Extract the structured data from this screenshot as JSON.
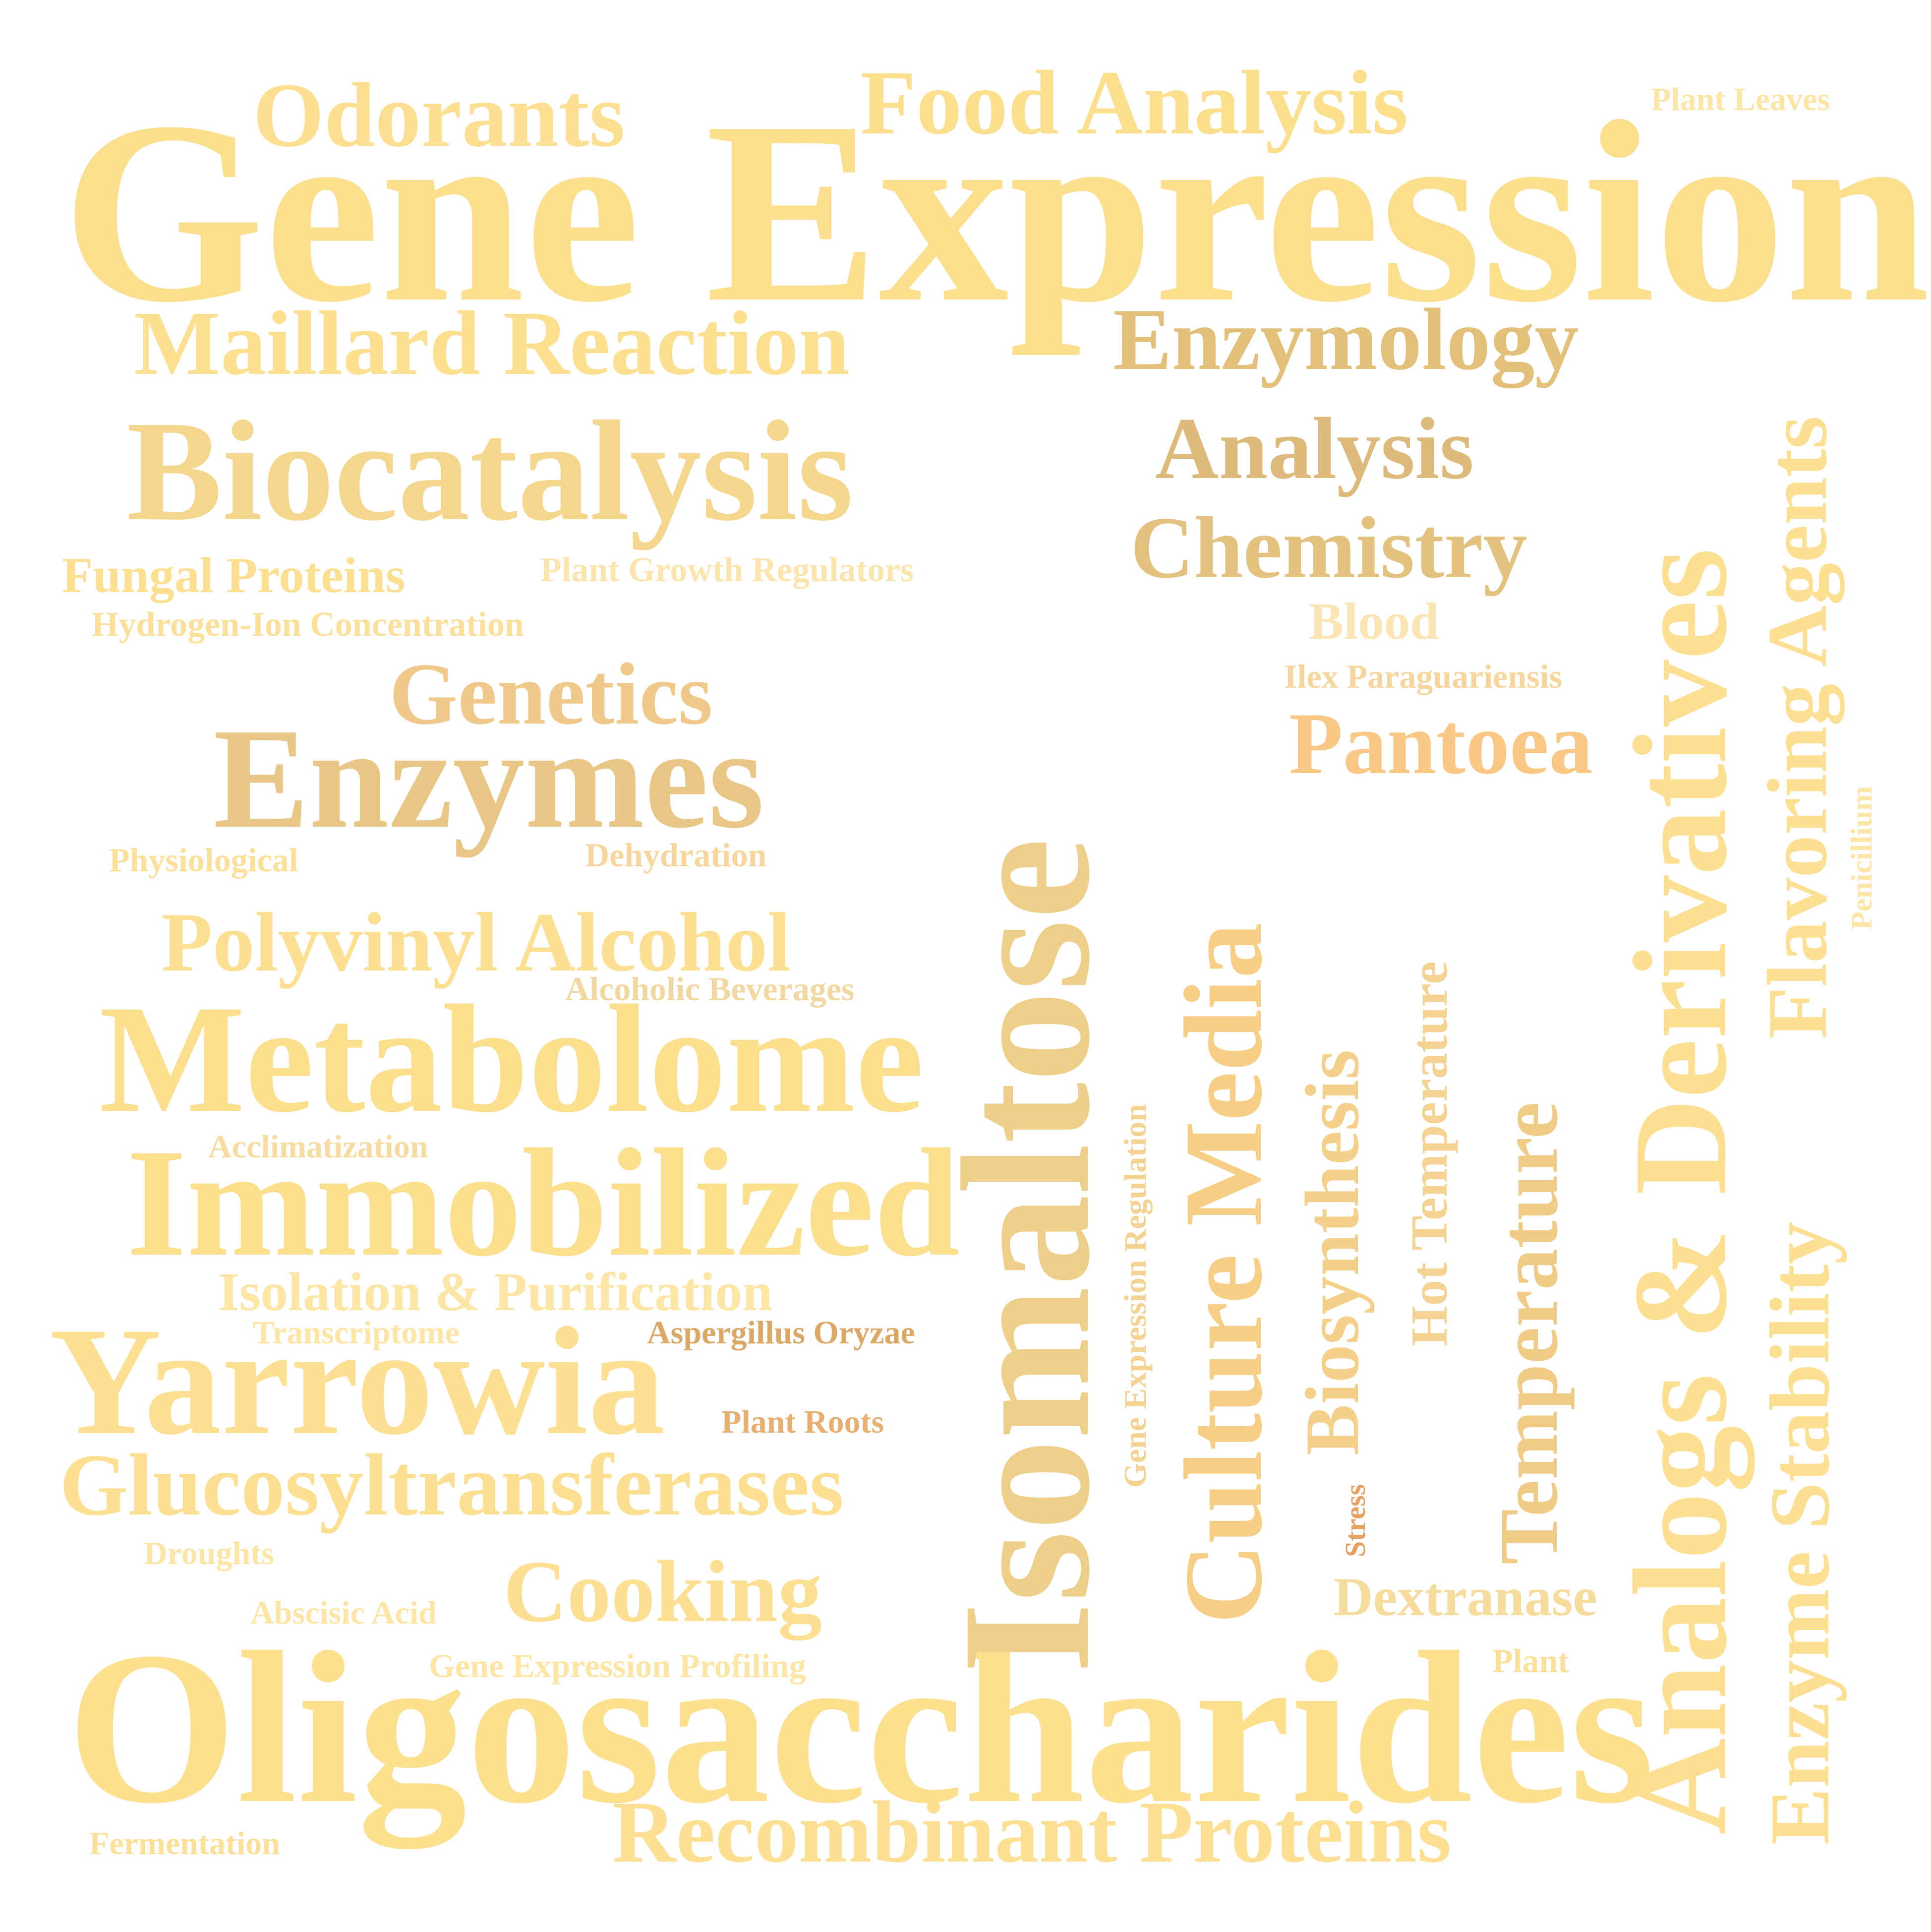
{
  "cloud": {
    "words": [
      {
        "text": "Gene Expression",
        "color": "#FCDF8C"
      },
      {
        "text": "Oligosaccharides",
        "color": "#FCE08E"
      },
      {
        "text": "Isomaltose",
        "color": "#EDCF8A"
      },
      {
        "text": "Analogs & Derivatives",
        "color": "#FCDF90"
      },
      {
        "text": "Culture Media",
        "color": "#F6CE85"
      },
      {
        "text": "Immobilized",
        "color": "#FCDF8C"
      },
      {
        "text": "Metabolome",
        "color": "#FCDF8C"
      },
      {
        "text": "Yarrowia",
        "color": "#FCDF90"
      },
      {
        "text": "Biocatalysis",
        "color": "#F4D68C"
      },
      {
        "text": "Enzymes",
        "color": "#E8C686"
      },
      {
        "text": "Maillard Reaction",
        "color": "#FCE090"
      },
      {
        "text": "Food Analysis",
        "color": "#FCDF8C"
      },
      {
        "text": "Odorants",
        "color": "#FCDF90"
      },
      {
        "text": "Enzymology",
        "color": "#E2C07A"
      },
      {
        "text": "Analysis",
        "color": "#DDB97A"
      },
      {
        "text": "Chemistry",
        "color": "#E2C27E"
      },
      {
        "text": "Pantoea",
        "color": "#F9C885"
      },
      {
        "text": "Genetics",
        "color": "#EFC88A"
      },
      {
        "text": "Glucosyltransferases",
        "color": "#FCDF90"
      },
      {
        "text": "Recombinant Proteins",
        "color": "#FCDF90"
      },
      {
        "text": "Cooking",
        "color": "#FCDF90"
      },
      {
        "text": "Polyvinyl Alcohol",
        "color": "#FCDF90"
      },
      {
        "text": "Isolation & Purification",
        "color": "#FCE5A5"
      },
      {
        "text": "Flavoring Agents",
        "color": "#FCDF90"
      },
      {
        "text": "Enzyme Stability",
        "color": "#FCDF90"
      },
      {
        "text": "Temperature",
        "color": "#EFCB85"
      },
      {
        "text": "Biosynthesis",
        "color": "#F4D08A"
      },
      {
        "text": "Dextranase",
        "color": "#F6DC9C"
      },
      {
        "text": "Fungal Proteins",
        "color": "#FCDF90"
      },
      {
        "text": "Blood",
        "color": "#FCE5B5"
      },
      {
        "text": "Hot Temperature",
        "color": "#F4D292"
      },
      {
        "text": "Plant Growth Regulators",
        "color": "#FCE5AD"
      },
      {
        "text": "Hydrogen-Ion Concentration",
        "color": "#FCE09A"
      },
      {
        "text": "Ilex Paraguariensis",
        "color": "#F6D69C"
      },
      {
        "text": "Alcoholic Beverages",
        "color": "#F0D8A0"
      },
      {
        "text": "Gene Expression Profiling",
        "color": "#FCE5A5"
      },
      {
        "text": "Aspergillus Oryzae",
        "color": "#DCA866"
      },
      {
        "text": "Plant Roots",
        "color": "#E8B070"
      },
      {
        "text": "Physiological",
        "color": "#FCE09A"
      },
      {
        "text": "Dehydration",
        "color": "#F6D69C"
      },
      {
        "text": "Acclimatization",
        "color": "#F6DCA0"
      },
      {
        "text": "Transcriptome",
        "color": "#FCE5A5"
      },
      {
        "text": "Droughts",
        "color": "#FCE5A5"
      },
      {
        "text": "Abscisic Acid",
        "color": "#FCE5A5"
      },
      {
        "text": "Plant Leaves",
        "color": "#FCE5A5"
      },
      {
        "text": "Fermentation",
        "color": "#FCE09A"
      },
      {
        "text": "Plant",
        "color": "#FCE09A"
      },
      {
        "text": "Gene Expression Regulation",
        "color": "#F4D292"
      },
      {
        "text": "Penicillium",
        "color": "#FCE5A5"
      },
      {
        "text": "Stress",
        "color": "#E8A060"
      }
    ]
  }
}
